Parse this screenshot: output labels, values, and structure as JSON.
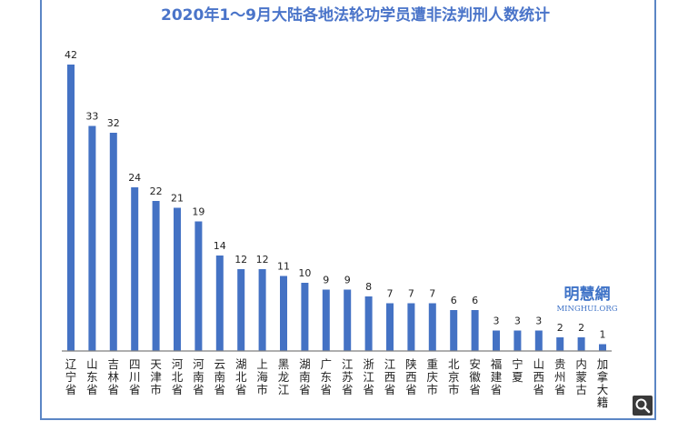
{
  "chart_data": {
    "type": "bar",
    "title": "2020年1～9月大陆各地法轮功学员遭非法判刑人数统计",
    "categories": [
      "辽宁省",
      "山东省",
      "吉林省",
      "四川省",
      "天津市",
      "河北省",
      "河南省",
      "云南省",
      "湖北省",
      "上海市",
      "黑龙江",
      "湖南省",
      "广东省",
      "江苏省",
      "浙江省",
      "江西省",
      "陕西省",
      "重庆市",
      "北京市",
      "安徽省",
      "福建省",
      "宁夏",
      "山西省",
      "贵州省",
      "内蒙古",
      "加拿大籍"
    ],
    "values": [
      42,
      33,
      32,
      24,
      22,
      21,
      19,
      14,
      12,
      12,
      11,
      10,
      9,
      9,
      8,
      7,
      7,
      7,
      6,
      6,
      3,
      3,
      3,
      2,
      2,
      1
    ],
    "ylim": [
      0,
      45
    ],
    "grid": false,
    "legend": "none",
    "bar_color": "#4472c4",
    "axis_color": "#7f7f7f",
    "frame_color": "#5b86c5",
    "title_color": "#4a74c9"
  },
  "watermark": {
    "name_cn": "明慧網",
    "name_en": "MINGHUI.ORG",
    "color": "#3f73c7"
  },
  "toolbar": {
    "zoom_icon": "magnifier-icon"
  }
}
